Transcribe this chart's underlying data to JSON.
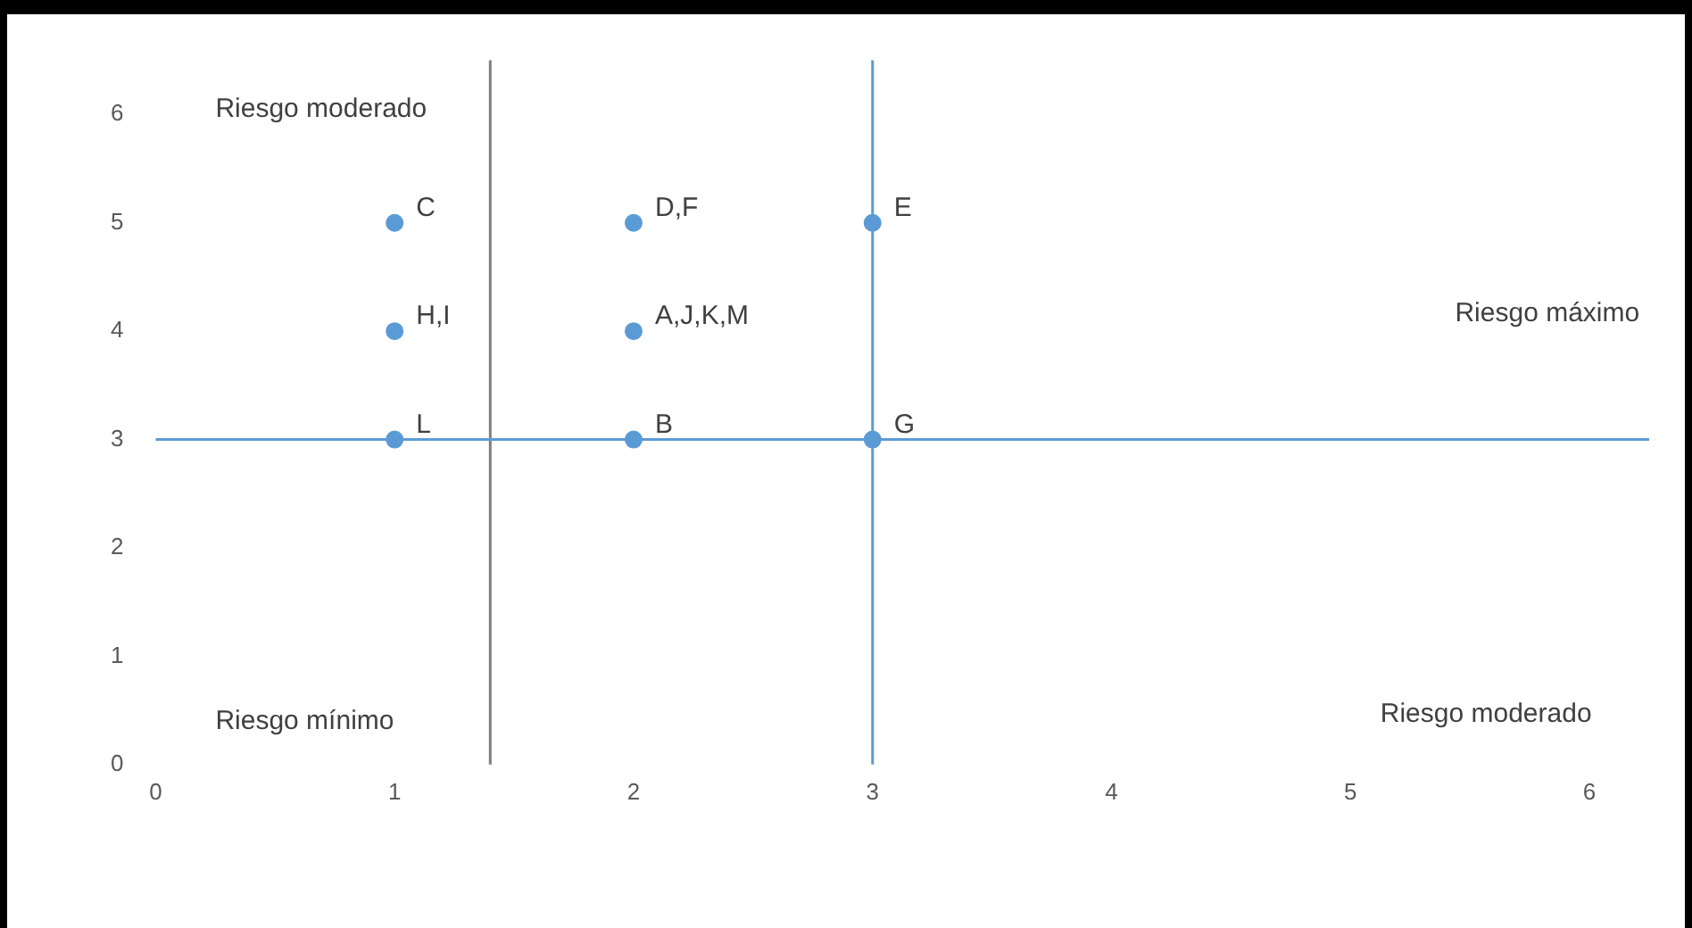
{
  "chart_data": {
    "type": "scatter",
    "x": [
      1,
      2,
      3,
      1,
      2,
      1,
      2,
      3
    ],
    "values": [
      5,
      5,
      5,
      4,
      4,
      3,
      3,
      3
    ],
    "color": "#5b9bd5",
    "marker": "circle",
    "xlim": [
      0,
      6.25
    ],
    "xticks": [
      0,
      1,
      2,
      3,
      4,
      5,
      6
    ],
    "ylim": [
      0,
      6.5
    ],
    "yticks": [
      0,
      1,
      2,
      3,
      4,
      5,
      6
    ],
    "grid": false,
    "legend": false,
    "ref_lines": [
      {
        "axis": "x",
        "value": 1.4,
        "color": "#7f7f7f"
      },
      {
        "axis": "y",
        "value": 3,
        "color": "#5b9bd5"
      },
      {
        "axis": "x",
        "value": 3,
        "color": "#5b9bd5"
      }
    ],
    "annotations": [
      "Riesgo moderado",
      "Riesgo máximo",
      "Riesgo mínimo",
      "Riesgo moderado",
      {
        "text": "C",
        "x": 1,
        "y": 5
      },
      {
        "text": "D,F",
        "x": 2,
        "y": 5
      },
      {
        "text": "E",
        "x": 3,
        "y": 5
      },
      {
        "text": "H,I",
        "x": 1,
        "y": 4
      },
      {
        "text": "A,J,K,M",
        "x": 2,
        "y": 4
      },
      {
        "text": "L",
        "x": 1,
        "y": 3
      },
      {
        "text": "B",
        "x": 2,
        "y": 3
      },
      {
        "text": "G",
        "x": 3,
        "y": 3
      }
    ]
  }
}
